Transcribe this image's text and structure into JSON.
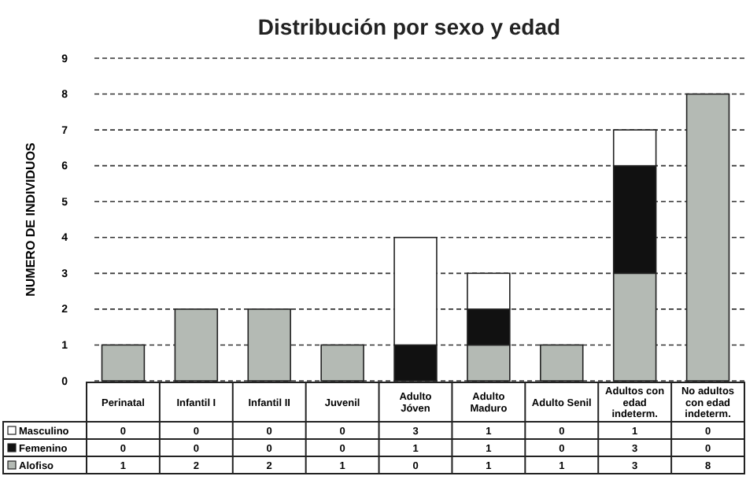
{
  "chart_data": {
    "type": "bar",
    "title": "Distribución por sexo y edad",
    "ylabel": "NUMERO DE INDIVIDUOS",
    "categories": [
      "Perinatal",
      "Infantil I",
      "Infantil II",
      "Juvenil",
      "Adulto Jóven",
      "Adulto Maduro",
      "Adulto Senil",
      "Adultos con edad indeterm.",
      "No adultos con edad indeterm."
    ],
    "series": [
      {
        "name": "Alofiso",
        "color": "#b4bab4",
        "values": [
          1,
          2,
          2,
          1,
          0,
          1,
          1,
          3,
          8
        ]
      },
      {
        "name": "Femenino",
        "color": "#111111",
        "values": [
          0,
          0,
          0,
          0,
          1,
          1,
          0,
          3,
          0
        ]
      },
      {
        "name": "Masculino",
        "color": "#ffffff",
        "values": [
          0,
          0,
          0,
          0,
          3,
          1,
          0,
          1,
          0
        ]
      }
    ],
    "stacked": true,
    "ylim": [
      0,
      9
    ],
    "yticks": [
      0,
      1,
      2,
      3,
      4,
      5,
      6,
      7,
      8,
      9
    ],
    "grid": "y",
    "legend": "bottom",
    "data_labels": true
  }
}
